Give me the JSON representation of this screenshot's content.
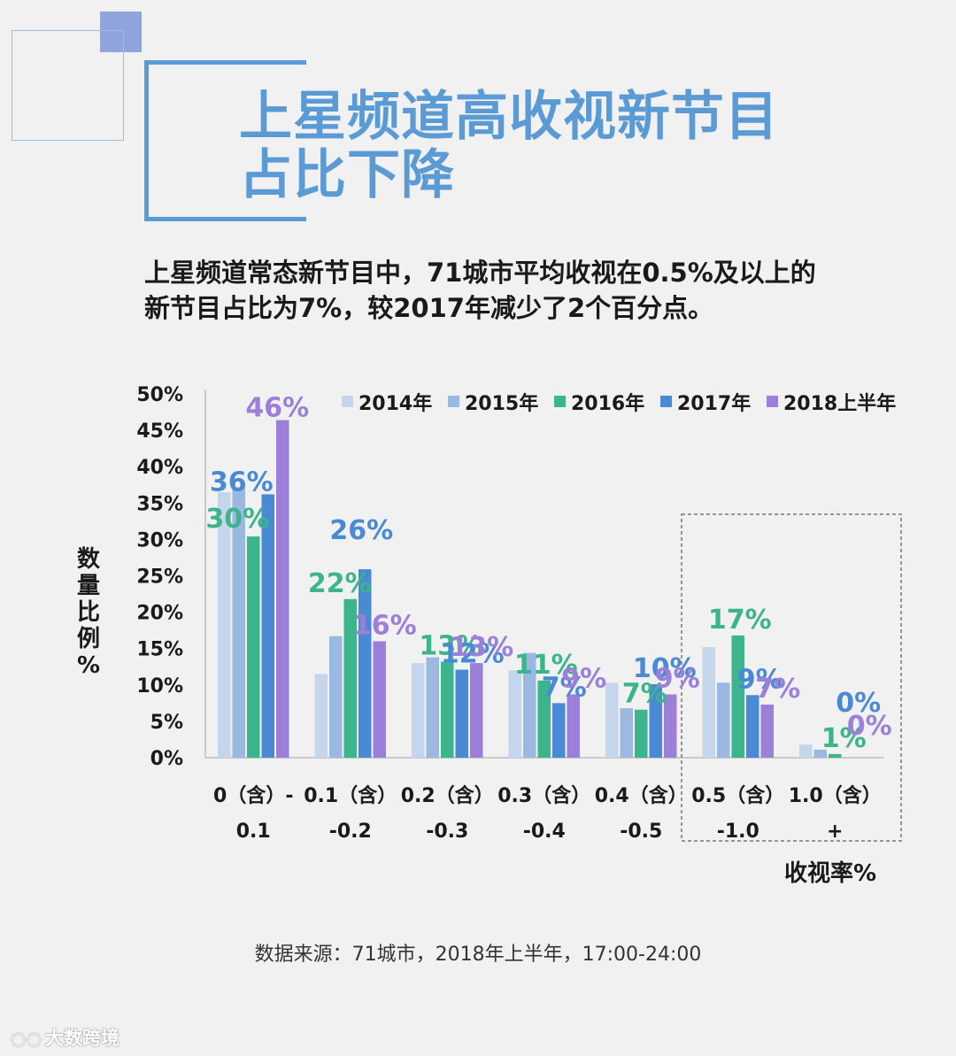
{
  "header": {
    "title_line1": "上星频道高收视新节目",
    "title_line2": "占比下降",
    "subtitle_line1": "上星频道常态新节目中，71城市平均收视在0.5%及以上的",
    "subtitle_line2": "新节目占比为7%，较2017年减少了2个百分点。"
  },
  "colors": {
    "title": "#5b9bd5",
    "s2014": "#c5d6ec",
    "s2015": "#9ab8e0",
    "s2016": "#3cb48c",
    "s2017": "#4a8ad4",
    "s2018": "#9b7fd8"
  },
  "chart_data": {
    "type": "bar",
    "ylabel": "数量比例%",
    "xlabel": "收视率%",
    "ylim": [
      0,
      50
    ],
    "yticks": [
      "0%",
      "5%",
      "10%",
      "15%",
      "20%",
      "25%",
      "30%",
      "35%",
      "40%",
      "45%",
      "50%"
    ],
    "categories": [
      [
        "0（含）-",
        "0.1"
      ],
      [
        "0.1（含）",
        "-0.2"
      ],
      [
        "0.2（含）",
        "-0.3"
      ],
      [
        "0.3（含）",
        "-0.4"
      ],
      [
        "0.4（含）",
        "-0.5"
      ],
      [
        "0.5（含）",
        "-1.0"
      ],
      [
        "1.0（含）",
        "+"
      ]
    ],
    "series": [
      {
        "name": "2014年",
        "color": "#c5d6ec",
        "values": [
          36.5,
          11.5,
          13,
          12,
          10.3,
          15.2,
          1.8
        ]
      },
      {
        "name": "2015年",
        "color": "#9ab8e0",
        "values": [
          37.2,
          16.7,
          13.8,
          14.4,
          6.8,
          10.3,
          1.1
        ]
      },
      {
        "name": "2016年",
        "color": "#3cb48c",
        "values": [
          30.4,
          21.8,
          13.2,
          10.6,
          6.6,
          16.8,
          0.5
        ]
      },
      {
        "name": "2017年",
        "color": "#4a8ad4",
        "values": [
          36.2,
          25.9,
          12.1,
          7.5,
          10.1,
          8.6,
          0
        ]
      },
      {
        "name": "2018上半年",
        "color": "#9b7fd8",
        "values": [
          46.4,
          16,
          13,
          8.7,
          8.7,
          7.3,
          0
        ]
      }
    ],
    "data_labels": [
      {
        "category": 0,
        "series": 2,
        "text": "30%"
      },
      {
        "category": 0,
        "series": 3,
        "text": "36%"
      },
      {
        "category": 0,
        "series": 4,
        "text": "46%"
      },
      {
        "category": 1,
        "series": 2,
        "text": "22%"
      },
      {
        "category": 1,
        "series": 3,
        "text": "26%"
      },
      {
        "category": 1,
        "series": 4,
        "text": "16%"
      },
      {
        "category": 2,
        "series": 2,
        "text": "13%"
      },
      {
        "category": 2,
        "series": 3,
        "text": "12%"
      },
      {
        "category": 2,
        "series": 4,
        "text": "13%"
      },
      {
        "category": 3,
        "series": 2,
        "text": "11%"
      },
      {
        "category": 3,
        "series": 3,
        "text": "7%"
      },
      {
        "category": 3,
        "series": 4,
        "text": "9%"
      },
      {
        "category": 4,
        "series": 2,
        "text": "7%"
      },
      {
        "category": 4,
        "series": 3,
        "text": "10%"
      },
      {
        "category": 4,
        "series": 4,
        "text": "9%"
      },
      {
        "category": 5,
        "series": 2,
        "text": "17%"
      },
      {
        "category": 5,
        "series": 3,
        "text": "9%"
      },
      {
        "category": 5,
        "series": 4,
        "text": "7%"
      },
      {
        "category": 6,
        "series": 2,
        "text": "1%"
      },
      {
        "category": 6,
        "series": 3,
        "text": "0%"
      },
      {
        "category": 6,
        "series": 4,
        "text": "0%"
      }
    ],
    "legend_position": "top-right",
    "highlight": "dashed box around 0.5（含）-1.0 and 1.0（含）+"
  },
  "footer": {
    "source": "数据来源：71城市，2018年上半年，17:00-24:00",
    "watermark": "大数跨境",
    "watermark_icon": "logo-icon"
  }
}
